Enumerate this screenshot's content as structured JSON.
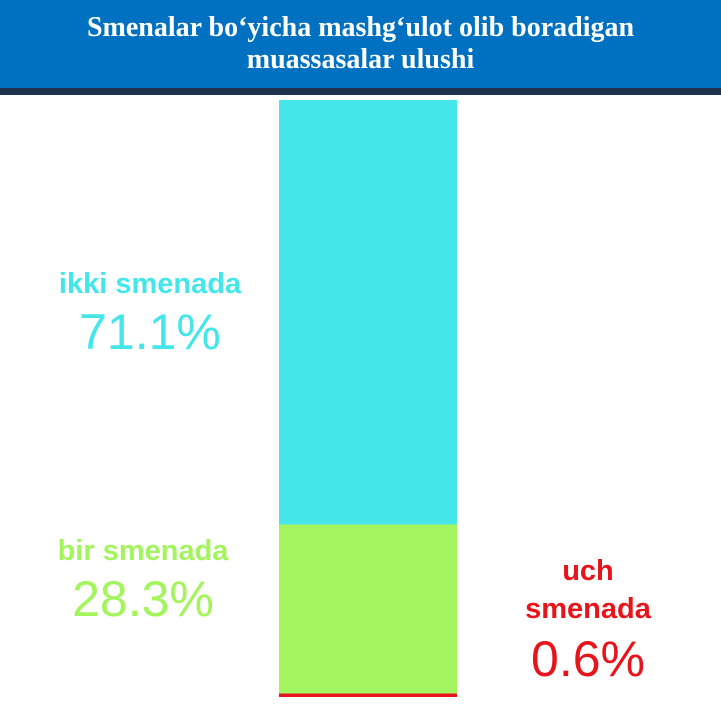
{
  "chart_data": {
    "type": "stacked-bar",
    "title": "Smenalar bo‘yicha mashg‘ulot olib boradigan muassasalar ulushi",
    "series": [
      {
        "name": "ikki smenada",
        "color": "#44e6ea",
        "values": [
          71.1
        ],
        "value_labels": [
          "71.1%"
        ]
      },
      {
        "name": "bir smenada",
        "color": "#a4f45e",
        "values": [
          28.3
        ],
        "value_labels": [
          "28.3%"
        ]
      },
      {
        "name": "uch smenada",
        "color": "#e8141c",
        "values": [
          0.6
        ],
        "value_labels": [
          "0.6%"
        ]
      }
    ],
    "ylim": [
      0,
      100
    ]
  }
}
